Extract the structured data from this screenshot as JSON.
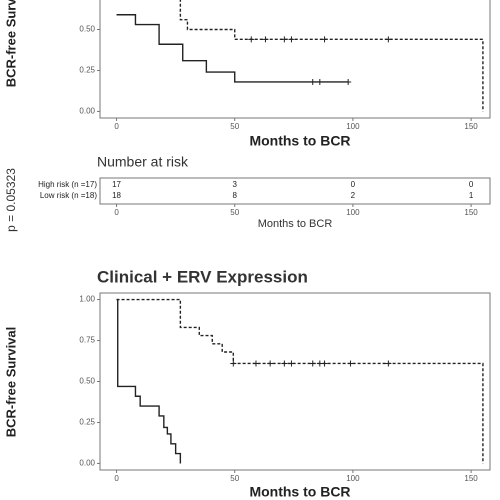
{
  "chart_data": [
    {
      "type": "step",
      "xlabel": "Months to BCR",
      "ylabel": "BCR-free Survival",
      "annotation": "p = 0.05323",
      "xlim": [
        -7,
        158
      ],
      "ylim": [
        -0.04,
        1.04
      ],
      "xticks": [
        0,
        50,
        100,
        150
      ],
      "yticks": [
        {
          "value": 0,
          "label": "0.00"
        },
        {
          "value": 0.25,
          "label": "0.25"
        },
        {
          "value": 0.5,
          "label": "0.50"
        }
      ],
      "series": [
        {
          "name": "High risk",
          "color": "#222222",
          "linestyle": "solid",
          "x": [
            0,
            8,
            18,
            28,
            38,
            50,
            98
          ],
          "values": [
            0.59,
            0.53,
            0.41,
            0.31,
            0.24,
            0.18,
            0.18
          ],
          "censor_x": [
            83,
            86,
            98
          ],
          "censor_values": [
            0.18,
            0.18,
            0.18
          ]
        },
        {
          "name": "Low risk",
          "color": "#222222",
          "linestyle": "dashed",
          "x": [
            0,
            27,
            30,
            50,
            155
          ],
          "values": [
            1.0,
            0.56,
            0.5,
            0.44,
            0
          ],
          "censor_x": [
            57,
            63,
            71,
            74,
            88,
            115
          ],
          "censor_values": [
            0.44,
            0.44,
            0.44,
            0.44,
            0.44,
            0.44
          ]
        }
      ],
      "risk_table": {
        "title": "Number at risk",
        "xlabel": "Months to BCR",
        "xticks": [
          0,
          50,
          100,
          150
        ],
        "rows": [
          {
            "name": "High risk (n =17)",
            "counts": [
              17,
              3,
              0,
              0
            ]
          },
          {
            "name": "Low risk (n =18)",
            "counts": [
              18,
              8,
              2,
              1
            ]
          }
        ]
      }
    },
    {
      "type": "step",
      "title": "Clinical + ERV Expression",
      "xlabel": "Months to BCR",
      "ylabel": "BCR-free Survival",
      "xlim": [
        -7,
        158
      ],
      "ylim": [
        -0.04,
        1.04
      ],
      "xticks": [
        0,
        50,
        100,
        150
      ],
      "yticks": [
        {
          "value": 0,
          "label": "0.00"
        },
        {
          "value": 0.25,
          "label": "0.25"
        },
        {
          "value": 0.5,
          "label": "0.50"
        },
        {
          "value": 0.75,
          "label": "0.75"
        },
        {
          "value": 1,
          "label": "1.00"
        }
      ],
      "series": [
        {
          "name": "High risk",
          "color": "#222222",
          "linestyle": "solid",
          "x": [
            0,
            0.5,
            8,
            10,
            18,
            20,
            21.5,
            23,
            25,
            27
          ],
          "values": [
            1.0,
            0.47,
            0.41,
            0.35,
            0.29,
            0.22,
            0.18,
            0.12,
            0.06,
            0
          ],
          "censor_x": [],
          "censor_values": []
        },
        {
          "name": "Low risk",
          "color": "#222222",
          "linestyle": "dashed",
          "x": [
            0,
            27,
            35,
            40.5,
            44.7,
            49.4,
            155
          ],
          "values": [
            1.0,
            0.83,
            0.78,
            0.73,
            0.68,
            0.61,
            0
          ],
          "censor_x": [
            49.4,
            59,
            65,
            71,
            74,
            83,
            86,
            88,
            99,
            115
          ],
          "censor_values": [
            0.61,
            0.61,
            0.61,
            0.61,
            0.61,
            0.61,
            0.61,
            0.61,
            0.61,
            0.61
          ]
        }
      ]
    }
  ]
}
